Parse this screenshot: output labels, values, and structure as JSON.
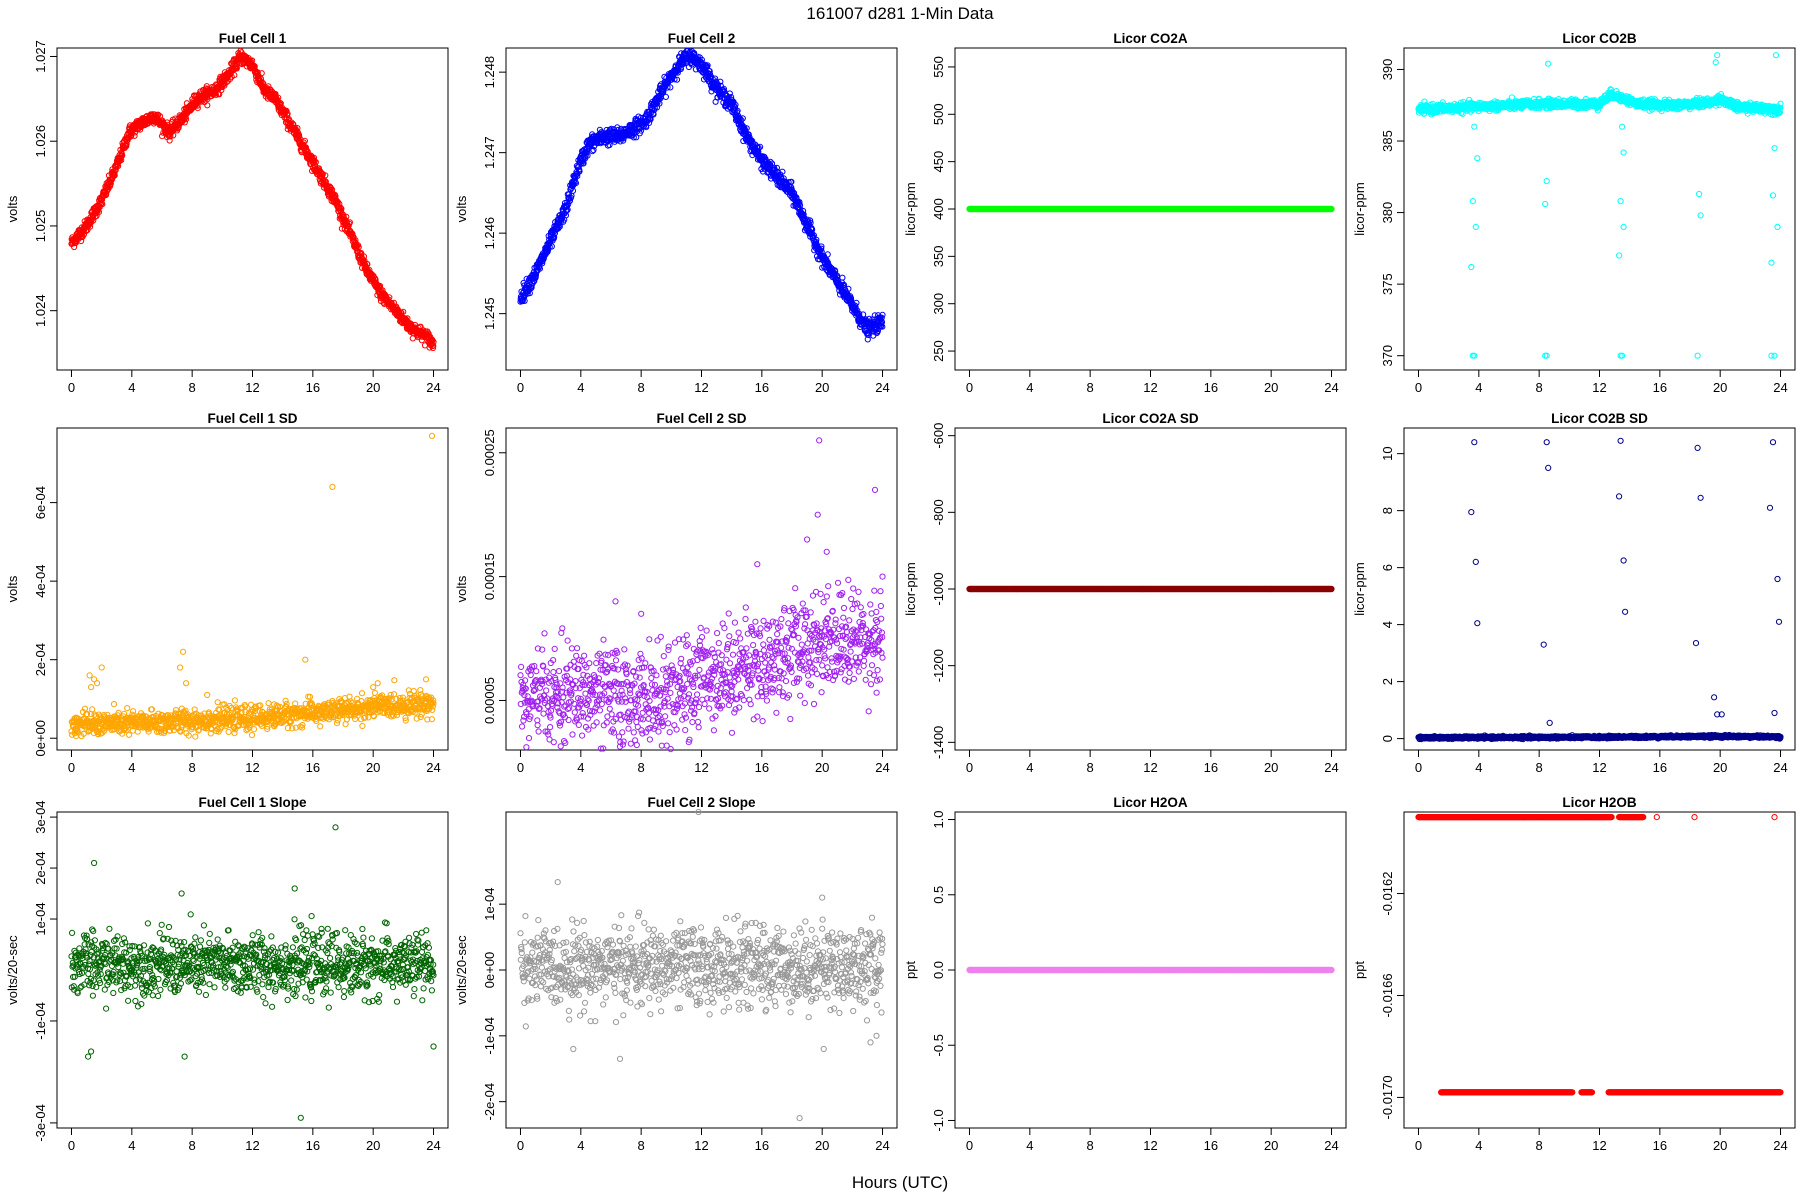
{
  "figure": {
    "title": "161007    d281    1-Min Data",
    "xlabel": "Hours (UTC)"
  },
  "chart_data": [
    {
      "type": "scatter",
      "title": "Fuel Cell 1",
      "ylabel": "volts",
      "color": "#ff0000",
      "xlim": [
        0,
        24
      ],
      "ylim": [
        1.0233,
        1.0271
      ],
      "xticks": [
        "0",
        "4",
        "8",
        "12",
        "16",
        "20",
        "24"
      ],
      "yticks": [
        1.024,
        1.025,
        1.026,
        1.027
      ],
      "ytick_labels": [
        "1.024",
        "1.025",
        "1.026",
        "1.027"
      ],
      "trend": [
        [
          0,
          1.0248
        ],
        [
          1,
          1.025
        ],
        [
          2,
          1.0253
        ],
        [
          3,
          1.0257
        ],
        [
          3.8,
          1.0261
        ],
        [
          4.5,
          1.0262
        ],
        [
          5.5,
          1.0263
        ],
        [
          6.5,
          1.0261
        ],
        [
          7.5,
          1.0263
        ],
        [
          8.3,
          1.0265
        ],
        [
          9.5,
          1.0266
        ],
        [
          10.5,
          1.0268
        ],
        [
          11.2,
          1.027
        ],
        [
          12,
          1.0269
        ],
        [
          12.8,
          1.0266
        ],
        [
          13.5,
          1.0265
        ],
        [
          14.5,
          1.0262
        ],
        [
          15.5,
          1.0259
        ],
        [
          16.5,
          1.0256
        ],
        [
          17.5,
          1.0253
        ],
        [
          18.5,
          1.0249
        ],
        [
          19.5,
          1.0245
        ],
        [
          20.5,
          1.0242
        ],
        [
          21.5,
          1.024
        ],
        [
          22.5,
          1.0238
        ],
        [
          23.5,
          1.0237
        ],
        [
          24,
          1.0236
        ]
      ],
      "noise": 4e-05,
      "points": 1400
    },
    {
      "type": "scatter",
      "title": "Fuel Cell 2",
      "ylabel": "volts",
      "color": "#0000ff",
      "xlim": [
        0,
        24
      ],
      "ylim": [
        1.2443,
        1.2483
      ],
      "xticks": [
        "0",
        "4",
        "8",
        "12",
        "16",
        "20",
        "24"
      ],
      "yticks": [
        1.245,
        1.246,
        1.247,
        1.248
      ],
      "ytick_labels": [
        "1.245",
        "1.246",
        "1.247",
        "1.248"
      ],
      "trend": [
        [
          0,
          1.2452
        ],
        [
          1,
          1.2455
        ],
        [
          2,
          1.2459
        ],
        [
          3,
          1.2463
        ],
        [
          3.8,
          1.2468
        ],
        [
          4.5,
          1.2471
        ],
        [
          5.5,
          1.2472
        ],
        [
          6.5,
          1.2472
        ],
        [
          7.5,
          1.2473
        ],
        [
          8.3,
          1.2474
        ],
        [
          9.5,
          1.2478
        ],
        [
          10.5,
          1.2481
        ],
        [
          11.2,
          1.2482
        ],
        [
          12,
          1.2481
        ],
        [
          13,
          1.2478
        ],
        [
          14,
          1.2476
        ],
        [
          15,
          1.2472
        ],
        [
          16,
          1.2469
        ],
        [
          17,
          1.2467
        ],
        [
          18,
          1.2465
        ],
        [
          19,
          1.2461
        ],
        [
          20,
          1.2457
        ],
        [
          21,
          1.2454
        ],
        [
          22,
          1.2451
        ],
        [
          23,
          1.2448
        ],
        [
          24,
          1.2449
        ]
      ],
      "noise": 5e-05,
      "points": 1400
    },
    {
      "type": "scatter",
      "title": "Licor CO2A",
      "ylabel": "licor-ppm",
      "color": "#00ff00",
      "xlim": [
        0,
        24
      ],
      "ylim": [
        230,
        570
      ],
      "xticks": [
        "0",
        "4",
        "8",
        "12",
        "16",
        "20",
        "24"
      ],
      "yticks": [
        250,
        300,
        350,
        400,
        450,
        500,
        550
      ],
      "ytick_labels": [
        "250",
        "300",
        "350",
        "400",
        "450",
        "500",
        "550"
      ],
      "trend": [
        [
          0,
          400
        ],
        [
          24,
          400
        ]
      ],
      "noise": 0,
      "points": 1400
    },
    {
      "type": "scatter",
      "title": "Licor CO2B",
      "ylabel": "licor-ppm",
      "color": "#00ffff",
      "xlim": [
        0,
        24
      ],
      "ylim": [
        369,
        391.5
      ],
      "xticks": [
        "0",
        "4",
        "8",
        "12",
        "16",
        "20",
        "24"
      ],
      "yticks": [
        370,
        375,
        380,
        385,
        390
      ],
      "ytick_labels": [
        "370",
        "375",
        "380",
        "385",
        "390"
      ],
      "trend": [
        [
          0,
          387.2
        ],
        [
          4,
          387.4
        ],
        [
          8,
          387.6
        ],
        [
          12,
          387.6
        ],
        [
          12.8,
          388.3
        ],
        [
          13.5,
          388.0
        ],
        [
          14.5,
          387.6
        ],
        [
          17,
          387.5
        ],
        [
          19.5,
          387.7
        ],
        [
          20,
          388.0
        ],
        [
          21,
          387.4
        ],
        [
          24,
          387.2
        ]
      ],
      "noise": 0.15,
      "points": 1400,
      "outliers": [
        [
          3.7,
          392.2
        ],
        [
          3.7,
          386
        ],
        [
          3.8,
          379
        ],
        [
          3.6,
          380.8
        ],
        [
          3.5,
          376.2
        ],
        [
          3.7,
          370
        ],
        [
          3.6,
          370
        ],
        [
          3.9,
          383.8
        ],
        [
          8.4,
          392.2
        ],
        [
          8.6,
          390.4
        ],
        [
          8.5,
          382.2
        ],
        [
          8.4,
          380.6
        ],
        [
          8.5,
          370
        ],
        [
          8.4,
          370
        ],
        [
          13.4,
          392.2
        ],
        [
          13.5,
          386
        ],
        [
          13.6,
          379
        ],
        [
          13.4,
          380.8
        ],
        [
          13.3,
          377
        ],
        [
          13.5,
          370
        ],
        [
          13.4,
          370
        ],
        [
          13.6,
          384.2
        ],
        [
          18.5,
          392.2
        ],
        [
          18.7,
          379.8
        ],
        [
          18.6,
          381.3
        ],
        [
          18.5,
          370
        ],
        [
          19.6,
          392
        ],
        [
          19.8,
          391
        ],
        [
          19.7,
          390.5
        ],
        [
          20,
          392
        ],
        [
          23.5,
          392.2
        ],
        [
          23.7,
          391
        ],
        [
          23.6,
          384.5
        ],
        [
          23.8,
          379
        ],
        [
          23.5,
          381.2
        ],
        [
          23.4,
          376.5
        ],
        [
          23.6,
          370
        ],
        [
          23.4,
          370
        ]
      ]
    },
    {
      "type": "scatter",
      "title": "Fuel Cell 1 SD",
      "ylabel": "volts",
      "color": "#ffa500",
      "xlim": [
        0,
        24
      ],
      "ylim": [
        -3e-05,
        0.00079
      ],
      "xticks": [
        "0",
        "4",
        "8",
        "12",
        "16",
        "20",
        "24"
      ],
      "yticks": [
        0,
        0.0002,
        0.0004,
        0.0006
      ],
      "ytick_labels": [
        "0e+00",
        "2e-04",
        "4e-04",
        "6e-04"
      ],
      "trend": [
        [
          0,
          3.5e-05
        ],
        [
          6,
          4e-05
        ],
        [
          8,
          4.5e-05
        ],
        [
          12,
          5e-05
        ],
        [
          14,
          6e-05
        ],
        [
          18,
          7e-05
        ],
        [
          20,
          8e-05
        ],
        [
          24,
          9e-05
        ]
      ],
      "noise": 1.5e-05,
      "points": 1100,
      "outliers": [
        [
          1.2,
          0.00016
        ],
        [
          1.5,
          0.00015
        ],
        [
          1.7,
          0.00014
        ],
        [
          1.3,
          0.00013
        ],
        [
          2,
          0.00018
        ],
        [
          7.2,
          0.00018
        ],
        [
          7.4,
          0.00022
        ],
        [
          7.6,
          0.00014
        ],
        [
          9,
          0.00011
        ],
        [
          15.5,
          0.0002
        ],
        [
          17.3,
          0.00064
        ],
        [
          20,
          0.00013
        ],
        [
          20.3,
          0.00014
        ],
        [
          23.9,
          0.00077
        ],
        [
          23.5,
          0.00015
        ]
      ]
    },
    {
      "type": "scatter",
      "title": "Fuel Cell 2 SD",
      "ylabel": "volts",
      "color": "#a020f0",
      "xlim": [
        0,
        24
      ],
      "ylim": [
        1e-05,
        0.00027
      ],
      "xticks": [
        "0",
        "4",
        "8",
        "12",
        "16",
        "20",
        "24"
      ],
      "yticks": [
        5e-05,
        0.00015,
        0.00025
      ],
      "ytick_labels": [
        "0.00005",
        "0.00015",
        "0.00025"
      ],
      "trend": [
        [
          0,
          5e-05
        ],
        [
          4,
          5.5e-05
        ],
        [
          8,
          5e-05
        ],
        [
          10,
          5e-05
        ],
        [
          12,
          7e-05
        ],
        [
          16,
          8e-05
        ],
        [
          20,
          0.0001
        ],
        [
          24,
          0.0001
        ]
      ],
      "noise": 2e-05,
      "points": 1100,
      "outliers": [
        [
          6.3,
          0.00013
        ],
        [
          8,
          0.00012
        ],
        [
          15.7,
          0.00016
        ],
        [
          19,
          0.00018
        ],
        [
          19.8,
          0.00026
        ],
        [
          19.7,
          0.0002
        ],
        [
          20.3,
          0.00017
        ],
        [
          23.5,
          0.00022
        ],
        [
          24,
          0.00015
        ]
      ]
    },
    {
      "type": "scatter",
      "title": "Licor CO2A SD",
      "ylabel": "licor-ppm",
      "color": "#8b0000",
      "xlim": [
        0,
        24
      ],
      "ylim": [
        -1420,
        -580
      ],
      "xticks": [
        "0",
        "4",
        "8",
        "12",
        "16",
        "20",
        "24"
      ],
      "yticks": [
        -1400,
        -1200,
        -1000,
        -800,
        -600
      ],
      "ytick_labels": [
        "-1400",
        "-1200",
        "-1000",
        "-800",
        "-600"
      ],
      "trend": [
        [
          0,
          -1000
        ],
        [
          24,
          -1000
        ]
      ],
      "noise": 0,
      "points": 1400
    },
    {
      "type": "scatter",
      "title": "Licor CO2B SD",
      "ylabel": "licor-ppm",
      "color": "#00008b",
      "xlim": [
        0,
        24
      ],
      "ylim": [
        -0.4,
        10.9
      ],
      "xticks": [
        "0",
        "4",
        "8",
        "12",
        "16",
        "20",
        "24"
      ],
      "yticks": [
        0,
        2,
        4,
        6,
        8,
        10
      ],
      "ytick_labels": [
        "0",
        "2",
        "4",
        "6",
        "8",
        "10"
      ],
      "trend": [
        [
          0,
          0.03
        ],
        [
          12,
          0.05
        ],
        [
          20,
          0.08
        ],
        [
          24,
          0.06
        ]
      ],
      "noise": 0.02,
      "points": 1400,
      "outliers": [
        [
          3.7,
          10.4
        ],
        [
          3.5,
          7.95
        ],
        [
          3.8,
          6.2
        ],
        [
          3.9,
          4.05
        ],
        [
          8.5,
          10.4
        ],
        [
          8.6,
          9.5
        ],
        [
          8.3,
          3.3
        ],
        [
          8.7,
          0.55
        ],
        [
          13.4,
          10.45
        ],
        [
          13.3,
          8.5
        ],
        [
          13.6,
          6.25
        ],
        [
          13.7,
          4.45
        ],
        [
          18.5,
          10.2
        ],
        [
          18.7,
          8.45
        ],
        [
          18.4,
          3.35
        ],
        [
          19.6,
          1.45
        ],
        [
          19.8,
          0.85
        ],
        [
          20.1,
          0.85
        ],
        [
          23.5,
          10.4
        ],
        [
          23.3,
          8.1
        ],
        [
          23.8,
          5.6
        ],
        [
          23.9,
          4.1
        ],
        [
          23.6,
          0.9
        ]
      ]
    },
    {
      "type": "scatter",
      "title": "Fuel Cell 1 Slope",
      "ylabel": "volts/20-sec",
      "color": "#006400",
      "xlim": [
        0,
        24
      ],
      "ylim": [
        -0.00031,
        0.00031
      ],
      "xticks": [
        "0",
        "4",
        "8",
        "12",
        "16",
        "20",
        "24"
      ],
      "yticks": [
        -0.0003,
        -0.0001,
        0.0001,
        0.0002,
        0.0003
      ],
      "ytick_labels": [
        "-3e-04",
        "-1e-04",
        "1e-04",
        "2e-04",
        "3e-04"
      ],
      "trend": [
        [
          0,
          1e-05
        ],
        [
          24,
          1e-05
        ]
      ],
      "noise": 3e-05,
      "points": 1100,
      "outliers": [
        [
          1.5,
          0.00021
        ],
        [
          1.1,
          -0.00017
        ],
        [
          1.3,
          -0.00016
        ],
        [
          7.5,
          -0.00017
        ],
        [
          7.3,
          0.00015
        ],
        [
          15.2,
          -0.00029
        ],
        [
          17.5,
          0.00028
        ],
        [
          14.8,
          0.00016
        ],
        [
          24,
          -0.00015
        ]
      ]
    },
    {
      "type": "scatter",
      "title": "Fuel Cell 2 Slope",
      "ylabel": "volts/20-sec",
      "color": "#999999",
      "xlim": [
        0,
        24
      ],
      "ylim": [
        -0.00024,
        0.00024
      ],
      "xticks": [
        "0",
        "4",
        "8",
        "12",
        "16",
        "20",
        "24"
      ],
      "yticks": [
        -0.0002,
        -0.0001,
        0,
        0.0001
      ],
      "ytick_labels": [
        "-2e-04",
        "-1e-04",
        "0e+00",
        "1e-04"
      ],
      "trend": [
        [
          0,
          5e-06
        ],
        [
          24,
          5e-06
        ]
      ],
      "noise": 3e-05,
      "points": 1100,
      "outliers": [
        [
          11.8,
          0.00024
        ],
        [
          18.5,
          -0.000225
        ],
        [
          3.5,
          -0.00012
        ],
        [
          6.6,
          -0.000135
        ],
        [
          20,
          0.00011
        ],
        [
          20.1,
          -0.00012
        ],
        [
          23.2,
          -0.00011
        ],
        [
          23.6,
          -0.0001
        ]
      ]
    },
    {
      "type": "scatter",
      "title": "Licor H2OA",
      "ylabel": "ppt",
      "color": "#ee82ee",
      "xlim": [
        0,
        24
      ],
      "ylim": [
        -1.05,
        1.05
      ],
      "xticks": [
        "0",
        "4",
        "8",
        "12",
        "16",
        "20",
        "24"
      ],
      "yticks": [
        -1,
        -0.5,
        0,
        0.5,
        1
      ],
      "ytick_labels": [
        "-1.0",
        "-0.5",
        "0.0",
        "0.5",
        "1.0"
      ],
      "trend": [
        [
          0,
          0
        ],
        [
          24,
          0
        ]
      ],
      "noise": 0,
      "points": 1400
    },
    {
      "type": "scatter",
      "title": "Licor H2OB",
      "ylabel": "ppt",
      "color": "#ff0000",
      "xlim": [
        0,
        24
      ],
      "ylim": [
        -0.01712,
        -0.01588
      ],
      "xticks": [
        "0",
        "4",
        "8",
        "12",
        "16",
        "20",
        "24"
      ],
      "yticks": [
        -0.017,
        -0.0166,
        -0.0162
      ],
      "ytick_labels": [
        "-0.0170",
        "-0.0166",
        "-0.0162"
      ],
      "levels": [
        {
          "y": -0.0159,
          "ranges": [
            [
              0,
              12.8
            ],
            [
              13.3,
              14.9
            ]
          ],
          "extra": [
            15.8,
            18.3,
            23.6
          ]
        },
        {
          "y": -0.01698,
          "ranges": [
            [
              1.5,
              10.2
            ],
            [
              10.8,
              11.5
            ],
            [
              12.6,
              24
            ]
          ],
          "extra": []
        }
      ]
    }
  ]
}
